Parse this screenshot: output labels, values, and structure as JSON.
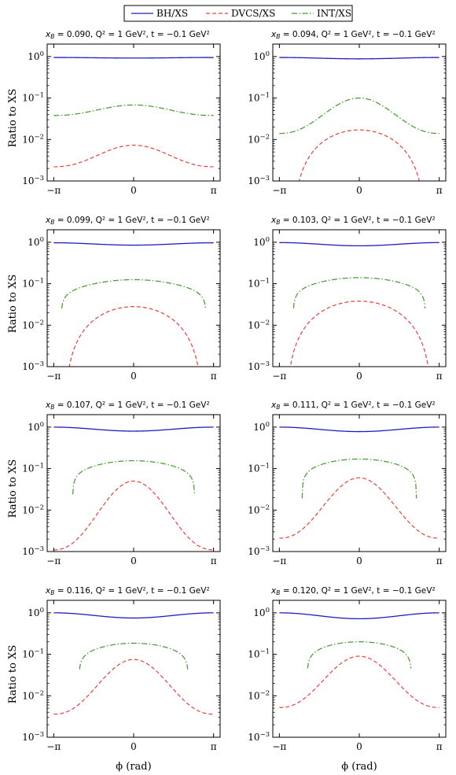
{
  "legend": {
    "items": [
      {
        "key": "bh",
        "label": "BH/XS",
        "color": "#1f1fbf",
        "dash": ""
      },
      {
        "key": "dvcs",
        "label": "DVCS/XS",
        "color": "#e8403a",
        "dash": "5,3"
      },
      {
        "key": "int",
        "label": "INT/XS",
        "color": "#3f9a2a",
        "dash": "7,2.5,1.5,2.5"
      }
    ]
  },
  "labels": {
    "ylabel": "Ratio to XS",
    "xlabel": "ϕ (rad)",
    "q2": "Q² = 1 GeV²",
    "t": "t = −0.1 GeV²"
  },
  "chart_data": {
    "type": "line",
    "grid": false,
    "yscale": "log",
    "ylim": [
      0.001,
      2.0
    ],
    "xlim": [
      -3.4,
      3.4
    ],
    "x_ticks": [
      "−π",
      "0",
      "π"
    ],
    "y_ticks": [
      "10⁰",
      "10⁻¹",
      "10⁻²",
      "10⁻³"
    ],
    "legend_placement": "top-center",
    "panels": [
      {
        "xB": "0.090",
        "bh": [
          0.95,
          0.92
        ],
        "dvcs": [
          0.0022,
          0.0073
        ],
        "int": [
          0.038,
          0.068
        ],
        "int_cut": null,
        "dvcs_cut": null
      },
      {
        "xB": "0.094",
        "bh": [
          0.95,
          0.88
        ],
        "dvcs": [
          0.0,
          0.017
        ],
        "int": [
          0.014,
          0.1
        ],
        "int_cut": null,
        "dvcs_cut": 2.6
      },
      {
        "xB": "0.099",
        "bh": [
          0.97,
          0.85
        ],
        "dvcs": [
          0.0,
          0.028
        ],
        "int": [
          0.0,
          0.125
        ],
        "int_cut": 2.85,
        "dvcs_cut": 2.7
      },
      {
        "xB": "0.103",
        "bh": [
          0.98,
          0.82
        ],
        "dvcs": [
          0.0,
          0.038
        ],
        "int": [
          0.0,
          0.14
        ],
        "int_cut": 2.6,
        "dvcs_cut": 2.85
      },
      {
        "xB": "0.107",
        "bh": [
          1.0,
          0.8
        ],
        "dvcs": [
          0.0011,
          0.05
        ],
        "int": [
          0.0,
          0.155
        ],
        "int_cut": 2.4,
        "dvcs_cut": null
      },
      {
        "xB": "0.111",
        "bh": [
          1.0,
          0.78
        ],
        "dvcs": [
          0.0021,
          0.06
        ],
        "int": [
          0.0,
          0.17
        ],
        "int_cut": 2.25,
        "dvcs_cut": null
      },
      {
        "xB": "0.116",
        "bh": [
          1.0,
          0.75
        ],
        "dvcs": [
          0.0036,
          0.075
        ],
        "int": [
          0.0,
          0.185
        ],
        "int_cut": 2.15,
        "dvcs_cut": null
      },
      {
        "xB": "0.120",
        "bh": [
          1.0,
          0.72
        ],
        "dvcs": [
          0.0052,
          0.09
        ],
        "int": [
          0.0,
          0.2
        ],
        "int_cut": 2.05,
        "dvcs_cut": null
      }
    ]
  }
}
